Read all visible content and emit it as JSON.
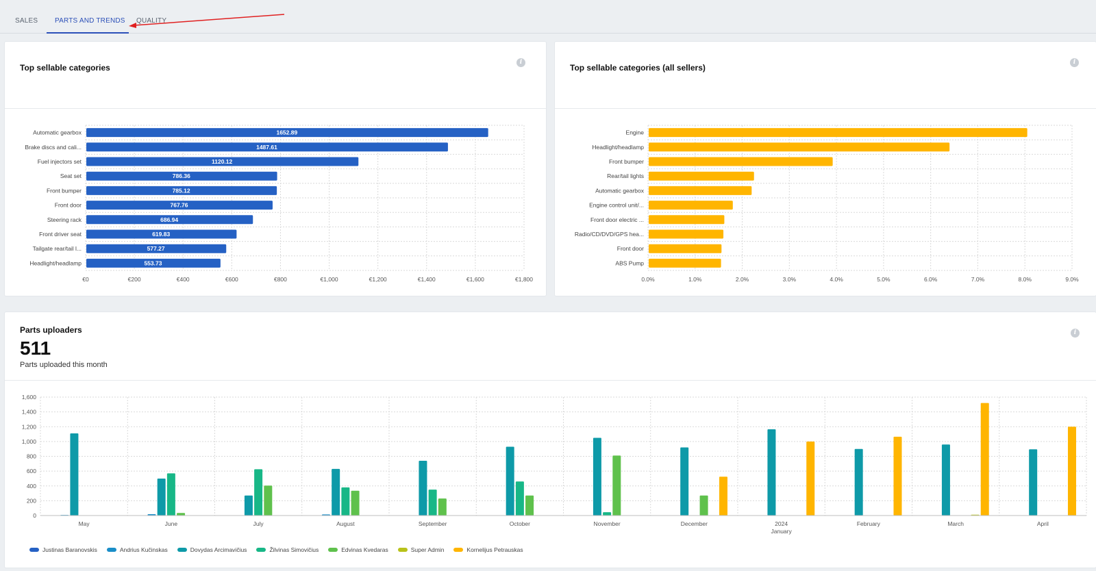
{
  "tabs": [
    {
      "label": "SALES",
      "active": false
    },
    {
      "label": "PARTS AND TRENDS",
      "active": true
    },
    {
      "label": "QUALITY",
      "active": false
    }
  ],
  "colors": {
    "accent": "#2b4fb8",
    "bar_blue": "#2561c4",
    "bar_yellow": "#ffb500",
    "annotation_arrow": "#e02020"
  },
  "cards": {
    "top_categories": {
      "title": "Top sellable categories",
      "info_icon": "info-icon"
    },
    "top_categories_all": {
      "title": "Top sellable categories (all sellers)",
      "info_icon": "info-icon"
    },
    "uploaders": {
      "title": "Parts uploaders",
      "big_number": "511",
      "subtitle": "Parts uploaded this month",
      "info_icon": "info-icon"
    }
  },
  "chart_data": [
    {
      "type": "bar",
      "orientation": "horizontal",
      "title": "Top sellable categories",
      "categories": [
        "Automatic gearbox",
        "Brake discs and cali...",
        "Fuel injectors set",
        "Seat set",
        "Front bumper",
        "Front door",
        "Steering rack",
        "Front driver seat",
        "Tailgate rear/tail l...",
        "Headlight/headlamp"
      ],
      "values": [
        1652.89,
        1487.61,
        1120.12,
        786.36,
        785.12,
        767.76,
        686.94,
        619.83,
        577.27,
        553.73
      ],
      "data_labels": [
        "1652.89",
        "1487.61",
        "1120.12",
        "786.36",
        "785.12",
        "767.76",
        "686.94",
        "619.83",
        "577.27",
        "553.73"
      ],
      "xlim": [
        0,
        1800
      ],
      "x_ticks": [
        0,
        200,
        400,
        600,
        800,
        1000,
        1200,
        1400,
        1600,
        1800
      ],
      "x_tick_labels": [
        "€0",
        "€200",
        "€400",
        "€600",
        "€800",
        "€1,000",
        "€1,200",
        "€1,400",
        "€1,600",
        "€1,800"
      ],
      "grid": true,
      "color": "#2561c4"
    },
    {
      "type": "bar",
      "orientation": "horizontal",
      "title": "Top sellable categories (all sellers)",
      "categories": [
        "Engine",
        "Headlight/headlamp",
        "Front bumper",
        "Rear/tail lights",
        "Automatic gearbox",
        "Engine control unit/...",
        "Front door electric ...",
        "Radio/CD/DVD/GPS hea...",
        "Front door",
        "ABS Pump"
      ],
      "values": [
        8.05,
        6.4,
        3.92,
        2.25,
        2.2,
        1.8,
        1.62,
        1.6,
        1.56,
        1.55
      ],
      "xlim": [
        0,
        9
      ],
      "x_ticks": [
        0,
        1,
        2,
        3,
        4,
        5,
        6,
        7,
        8,
        9
      ],
      "x_tick_labels": [
        "0.0%",
        "1.0%",
        "2.0%",
        "3.0%",
        "4.0%",
        "5.0%",
        "6.0%",
        "7.0%",
        "8.0%",
        "9.0%"
      ],
      "grid": true,
      "color": "#ffb500"
    },
    {
      "type": "bar",
      "title": "Parts uploaders",
      "categories": [
        "May",
        "June",
        "July",
        "August",
        "September",
        "October",
        "November",
        "December",
        "January",
        "February",
        "March",
        "April"
      ],
      "category_labels": [
        "May",
        "June",
        "July",
        "August",
        "September",
        "October",
        "November",
        "December",
        "2024",
        "February",
        "March",
        "April"
      ],
      "category_sublabels": [
        "",
        "",
        "",
        "",
        "",
        "",
        "",
        "",
        "January",
        "",
        "",
        ""
      ],
      "ylim": [
        0,
        1600
      ],
      "y_ticks": [
        0,
        200,
        400,
        600,
        800,
        1000,
        1200,
        1400,
        1600
      ],
      "y_tick_labels": [
        "0",
        "200",
        "400",
        "600",
        "800",
        "1,000",
        "1,200",
        "1,400",
        "1,600"
      ],
      "grid": true,
      "legend_position": "bottom-left",
      "series": [
        {
          "name": "Justinas Baranovskis",
          "color": "#2561c4",
          "values": [
            5,
            0,
            0,
            0,
            0,
            0,
            0,
            0,
            0,
            0,
            0,
            0
          ]
        },
        {
          "name": "Andrius Kučinskas",
          "color": "#1a8ec8",
          "values": [
            8,
            18,
            0,
            15,
            0,
            0,
            0,
            0,
            0,
            0,
            0,
            0
          ]
        },
        {
          "name": "Dovydas Arcimavičius",
          "color": "#0e9aa8",
          "values": [
            1110,
            500,
            270,
            630,
            740,
            930,
            1050,
            920,
            1165,
            900,
            960,
            895
          ]
        },
        {
          "name": "Žilvinas Simovičius",
          "color": "#18b787",
          "values": [
            0,
            570,
            625,
            380,
            350,
            460,
            45,
            0,
            0,
            0,
            0,
            0
          ]
        },
        {
          "name": "Edvinas Kvedaras",
          "color": "#5fc14c",
          "values": [
            0,
            35,
            405,
            335,
            230,
            270,
            810,
            270,
            0,
            0,
            0,
            0
          ]
        },
        {
          "name": "Super Admin",
          "color": "#b8c21a",
          "values": [
            0,
            0,
            0,
            0,
            0,
            5,
            0,
            0,
            0,
            0,
            12,
            5
          ]
        },
        {
          "name": "Kornelijus Petrauskas",
          "color": "#ffb500",
          "values": [
            0,
            0,
            0,
            0,
            0,
            0,
            0,
            525,
            1000,
            1065,
            1520,
            1200
          ]
        }
      ]
    }
  ]
}
